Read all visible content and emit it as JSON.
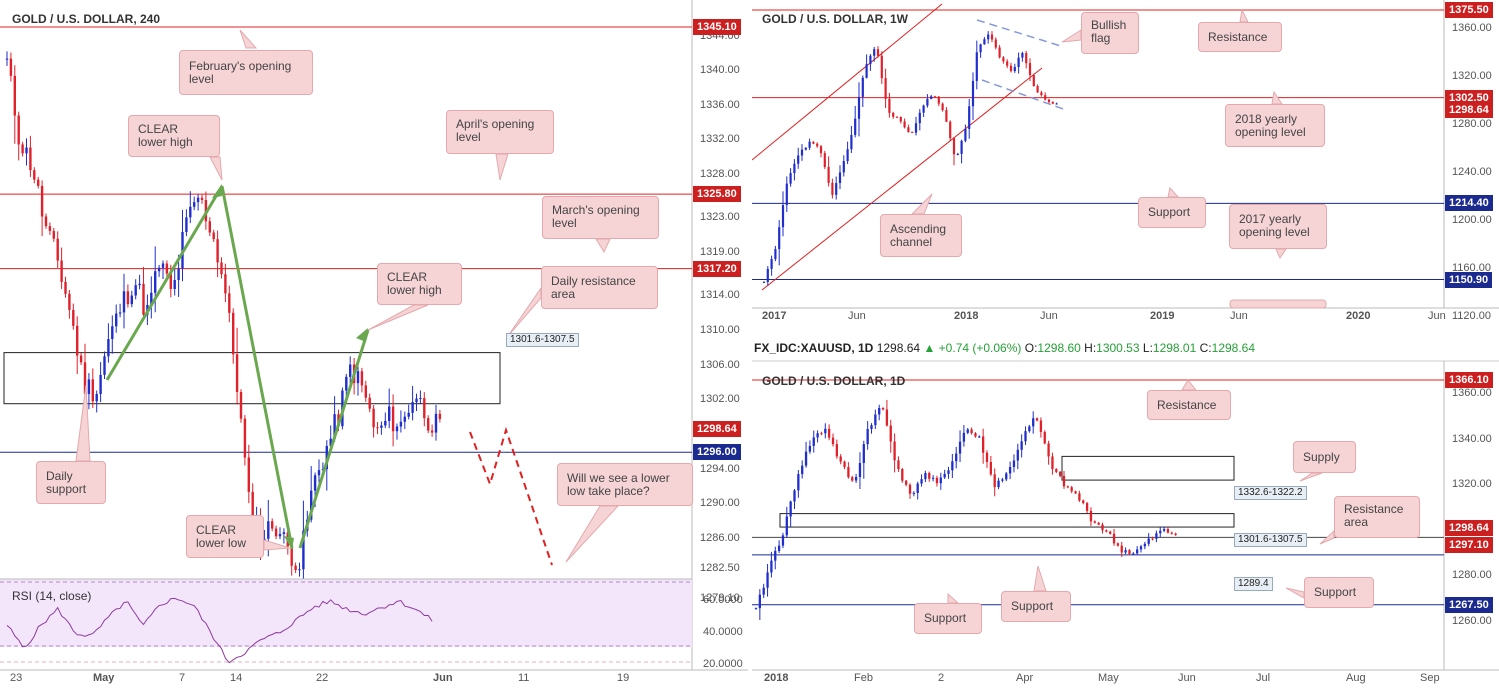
{
  "panels": {
    "h4": {
      "title": "GOLD / U.S. DOLLAR, 240",
      "price_labels": [
        {
          "value": "1345.10",
          "color": "#cc1f1f",
          "price": 1345.1
        },
        {
          "value": "1325.80",
          "color": "#cc1f1f",
          "price": 1325.8
        },
        {
          "value": "1317.20",
          "color": "#cc1f1f",
          "price": 1317.2
        },
        {
          "value": "1298.64",
          "color": "#cc1f1f",
          "price": 1298.64
        },
        {
          "value": "1296.00",
          "color": "#1a2a8f",
          "price": 1296.0
        }
      ],
      "y_ticks": [
        "1344.00",
        "1340.00",
        "1336.00",
        "1332.00",
        "1328.00",
        "1323.00",
        "1319.00",
        "1314.00",
        "1310.00",
        "1306.00",
        "1302.00",
        "1298.00",
        "1294.00",
        "1290.00",
        "1286.00",
        "1282.50",
        "1279.10"
      ],
      "x_ticks": [
        "23",
        "May",
        "7",
        "14",
        "22",
        "Jun",
        "11",
        "19"
      ],
      "zone_label": "1301.6-1307.5",
      "rsi_title": "RSI (14, close)",
      "rsi_ticks": [
        "60.0000",
        "40.0000",
        "20.0000"
      ],
      "callouts": {
        "feb": "February's opening level",
        "clear_lower_high_1": "CLEAR lower high",
        "april": "April's opening level",
        "march": "March's opening level",
        "clear_lower_high_2": "CLEAR lower high",
        "daily_resistance": "Daily resistance area",
        "daily_support": "Daily support",
        "clear_lower_low": "CLEAR lower low",
        "lower_low_q": "Will we see a lower low take place?"
      }
    },
    "weekly": {
      "title": "GOLD / U.S. DOLLAR, 1W",
      "price_labels": [
        {
          "value": "1375.50",
          "color": "#cc1f1f"
        },
        {
          "value": "1302.50",
          "color": "#cc1f1f"
        },
        {
          "value": "1298.64",
          "color": "#cc1f1f"
        },
        {
          "value": "1214.40",
          "color": "#1a2a8f"
        },
        {
          "value": "1150.90",
          "color": "#1a2a8f"
        }
      ],
      "y_ticks": [
        "1360.00",
        "1320.00",
        "1280.00",
        "1240.00",
        "1200.00",
        "1160.00",
        "1120.00"
      ],
      "x_ticks": [
        "2017",
        "Jun",
        "2018",
        "Jun",
        "2019",
        "Jun",
        "2020",
        "Jun"
      ],
      "callouts": {
        "bullish_flag": "Bullish flag",
        "resistance": "Resistance",
        "yearly_2018": "2018 yearly opening level",
        "support": "Support",
        "ascending": "Ascending channel",
        "yearly_2017": "2017 yearly opening level"
      }
    },
    "daily": {
      "header_symbol": "FX_IDC:XAUUSD, 1D",
      "header_price": "1298.64",
      "header_change": "+0.74 (+0.06%)",
      "ohlc": {
        "o": "1298.60",
        "h": "1300.53",
        "l": "1298.01",
        "c": "1298.64"
      },
      "title": "GOLD / U.S. DOLLAR, 1D",
      "price_labels": [
        {
          "value": "1366.10",
          "color": "#cc1f1f"
        },
        {
          "value": "1298.64",
          "color": "#cc1f1f"
        },
        {
          "value": "1297.10",
          "color": "#cc1f1f"
        },
        {
          "value": "1267.50",
          "color": "#1a2a8f"
        }
      ],
      "y_ticks": [
        "1360.00",
        "1340.00",
        "1320.00",
        "1300.00",
        "1280.00",
        "1260.00"
      ],
      "x_ticks": [
        "2018",
        "Feb",
        "2",
        "Apr",
        "May",
        "Jun",
        "Jul",
        "Aug",
        "Sep"
      ],
      "zone_labels": [
        "1332.6-1322.2",
        "1301.6-1307.5",
        "1289.4"
      ],
      "callouts": {
        "resistance": "Resistance",
        "supply": "Supply",
        "resistance_area": "Resistance area",
        "support_mid": "Support",
        "support_right": "Support",
        "support_left": "Support"
      }
    }
  },
  "colors": {
    "bull": "#1f2ecc",
    "bear": "#e0202a",
    "green_arrow": "#6aa84f",
    "red_line": "#e02020",
    "blue_line": "#1a2a8f",
    "rsi": "#8e3b9e"
  }
}
